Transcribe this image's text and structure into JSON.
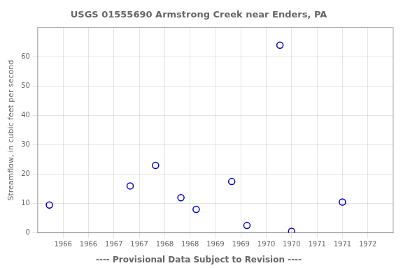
{
  "chart_data": {
    "type": "scatter",
    "title": "USGS 01555690 Armstrong Creek near Enders, PA",
    "ylabel": "Streamflow, in cubic feet per second",
    "footnote": "---- Provisional Data Subject to Revision ----",
    "x": [
      1965.73,
      1967.32,
      1967.82,
      1968.32,
      1968.62,
      1969.32,
      1969.62,
      1970.27,
      1970.5,
      1971.5
    ],
    "values": [
      9.5,
      16.0,
      23.0,
      12.0,
      8.0,
      17.5,
      2.5,
      64.0,
      0.5,
      10.5
    ],
    "color": "#0000bb",
    "marker": "circle",
    "xlim": [
      1965.5,
      1972.5
    ],
    "xticks": [
      1966,
      {
        "value": 1966.5,
        "label": "1966"
      },
      1967,
      {
        "value": 1967.5,
        "label": "1967"
      },
      1968,
      {
        "value": 1968.5,
        "label": "1968"
      },
      1969,
      {
        "value": 1969.5,
        "label": "1969"
      },
      1970,
      {
        "value": 1970.5,
        "label": "1970"
      },
      1971,
      {
        "value": 1971.5,
        "label": "1971"
      },
      1972
    ],
    "ylim": [
      0,
      70
    ],
    "yticks": [
      0,
      10,
      20,
      30,
      40,
      50,
      60
    ],
    "grid": true
  }
}
